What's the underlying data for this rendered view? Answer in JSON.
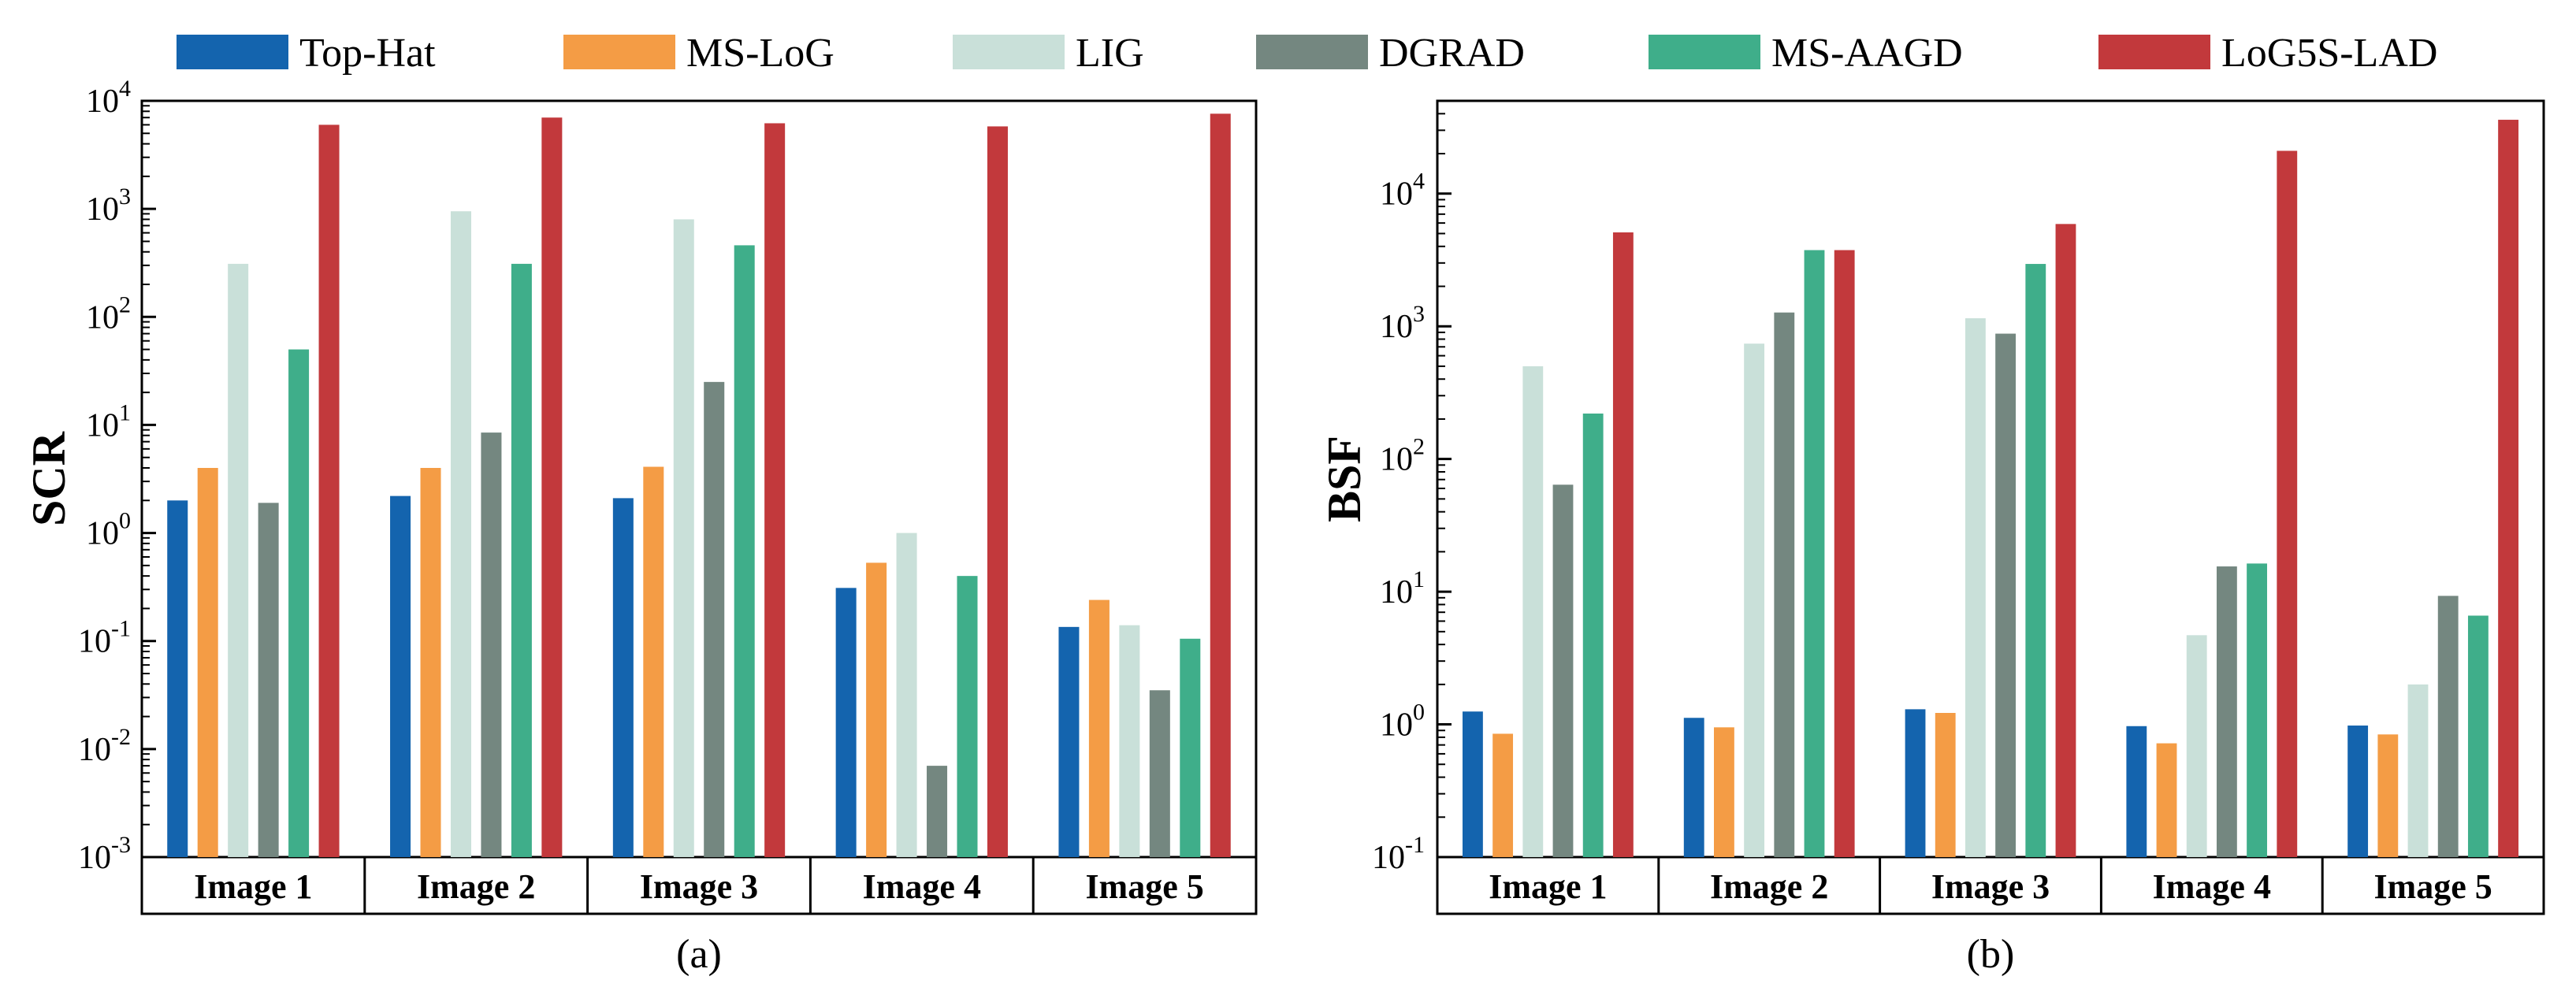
{
  "legend": {
    "items": [
      {
        "label": "Top-Hat",
        "color": "#1464ae"
      },
      {
        "label": "MS-LoG",
        "color": "#f49c45"
      },
      {
        "label": "LIG",
        "color": "#c9e0d9"
      },
      {
        "label": "DGRAD",
        "color": "#748780"
      },
      {
        "label": "MS-AAGD",
        "color": "#3fae8a"
      },
      {
        "label": "LoG5S-LAD",
        "color": "#c2393c"
      }
    ]
  },
  "chart_data": [
    {
      "type": "bar",
      "panel_label": "(a)",
      "ylabel": "SCR",
      "yscale": "log",
      "ylim": [
        0.001,
        10000
      ],
      "yticks": [
        {
          "base": "10",
          "exp": "-3"
        },
        {
          "base": "10",
          "exp": "-2"
        },
        {
          "base": "10",
          "exp": "-1"
        },
        {
          "base": "10",
          "exp": "0"
        },
        {
          "base": "10",
          "exp": "1"
        },
        {
          "base": "10",
          "exp": "2"
        },
        {
          "base": "10",
          "exp": "3"
        },
        {
          "base": "10",
          "exp": "4"
        }
      ],
      "categories": [
        "Image 1",
        "Image 2",
        "Image 3",
        "Image 4",
        "Image 5"
      ],
      "series": [
        {
          "name": "Top-Hat",
          "values": [
            2.0,
            2.2,
            2.1,
            0.31,
            0.135
          ]
        },
        {
          "name": "MS-LoG",
          "values": [
            4.0,
            4.0,
            4.1,
            0.53,
            0.24
          ]
        },
        {
          "name": "LIG",
          "values": [
            310,
            950,
            800,
            1.0,
            0.14
          ]
        },
        {
          "name": "DGRAD",
          "values": [
            1.9,
            8.5,
            25,
            0.007,
            0.035
          ]
        },
        {
          "name": "MS-AAGD",
          "values": [
            50,
            310,
            460,
            0.4,
            0.105
          ]
        },
        {
          "name": "LoG5S-LAD",
          "values": [
            6000,
            7000,
            6200,
            5800,
            7600
          ]
        }
      ],
      "grid": false,
      "legend_position": "top"
    },
    {
      "type": "bar",
      "panel_label": "(b)",
      "ylabel": "BSF",
      "yscale": "log",
      "ylim": [
        0.1,
        50000
      ],
      "yticks": [
        {
          "base": "10",
          "exp": "-1"
        },
        {
          "base": "10",
          "exp": "0"
        },
        {
          "base": "10",
          "exp": "1"
        },
        {
          "base": "10",
          "exp": "2"
        },
        {
          "base": "10",
          "exp": "3"
        },
        {
          "base": "10",
          "exp": "4"
        }
      ],
      "categories": [
        "Image 1",
        "Image 2",
        "Image 3",
        "Image 4",
        "Image 5"
      ],
      "series": [
        {
          "name": "Top-Hat",
          "values": [
            1.25,
            1.12,
            1.3,
            0.97,
            0.98
          ]
        },
        {
          "name": "MS-LoG",
          "values": [
            0.85,
            0.95,
            1.22,
            0.72,
            0.84
          ]
        },
        {
          "name": "LIG",
          "values": [
            500,
            740,
            1150,
            4.7,
            2.0
          ]
        },
        {
          "name": "DGRAD",
          "values": [
            64,
            1270,
            880,
            15.5,
            9.3
          ]
        },
        {
          "name": "MS-AAGD",
          "values": [
            220,
            3750,
            2950,
            16.3,
            6.6
          ]
        },
        {
          "name": "LoG5S-LAD",
          "values": [
            5100,
            3750,
            5900,
            21000,
            36000
          ]
        }
      ],
      "grid": false,
      "legend_position": "top"
    }
  ]
}
